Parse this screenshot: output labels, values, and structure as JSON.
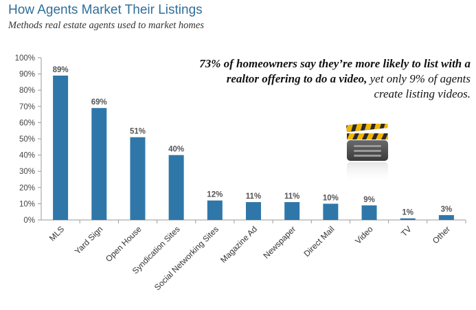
{
  "title": "How Agents Market Their Listings",
  "subtitle": "Methods real estate agents used to market homes",
  "callout": {
    "bold_part": "73% of homeowners say they’re more likely to list with a realtor offering to do a video,",
    "regular_part": " yet only 9% of agents create listing videos."
  },
  "icon": "clapperboard-icon",
  "colors": {
    "bar": "#2f77a9",
    "title": "#2f6e9a",
    "icon_stripe": "#f2b705"
  },
  "chart_data": {
    "type": "bar",
    "title": "How Agents Market Their Listings",
    "subtitle": "Methods real estate agents used to market homes",
    "xlabel": "",
    "ylabel": "",
    "categories": [
      "MLS",
      "Yard Sign",
      "Open House",
      "Syndication Sites",
      "Social Networking Sites",
      "Magazine Ad",
      "Newspaper",
      "Direct Mail",
      "Video",
      "TV",
      "Other"
    ],
    "values": [
      89,
      69,
      51,
      40,
      12,
      11,
      11,
      10,
      9,
      1,
      3
    ],
    "data_labels": [
      "89%",
      "69%",
      "51%",
      "40%",
      "12%",
      "11%",
      "11%",
      "10%",
      "9%",
      "1%",
      "3%"
    ],
    "ylim": [
      0,
      100
    ],
    "y_ticks": [
      "0%",
      "10%",
      "20%",
      "30%",
      "40%",
      "50%",
      "60%",
      "70%",
      "80%",
      "90%",
      "100%"
    ],
    "grid": false,
    "legend": "none"
  }
}
